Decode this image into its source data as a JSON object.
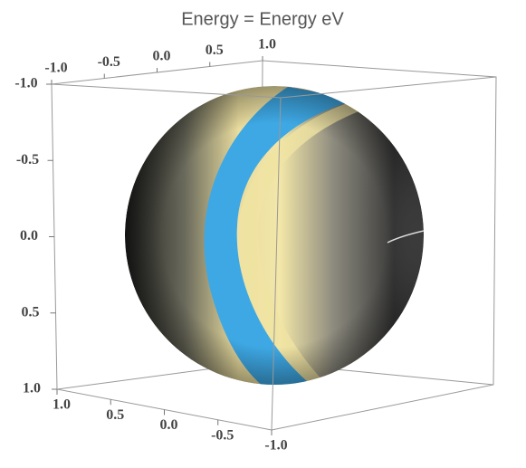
{
  "chart_data": {
    "type": "sphere",
    "title": "Energy = Energy eV",
    "color": "#3ea8e4",
    "xlim": [
      -1,
      1
    ],
    "xticks": [
      {
        "value": -1,
        "label": "-1.0"
      },
      -0.5,
      {
        "value": 0,
        "label": "0.0"
      },
      0.5,
      {
        "value": 1,
        "label": "1.0"
      }
    ],
    "ylim": [
      -1,
      1
    ],
    "yticks": [
      {
        "value": -1,
        "label": "-1.0"
      },
      -0.5,
      {
        "value": 0,
        "label": "0.0"
      },
      0.5,
      {
        "value": 1,
        "label": "1.0"
      }
    ],
    "zlim": [
      -1,
      1
    ],
    "zticks": [
      {
        "value": -1,
        "label": "-1.0"
      },
      -0.5,
      {
        "value": 0,
        "label": "0.0"
      },
      0.5,
      {
        "value": 1,
        "label": "1.0"
      }
    ]
  }
}
